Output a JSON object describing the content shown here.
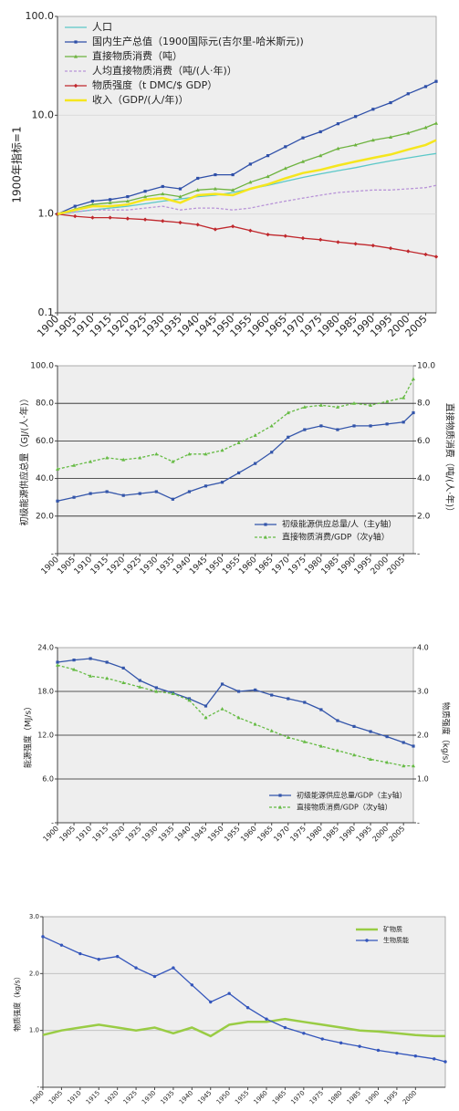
{
  "chart_data": [
    {
      "type": "line",
      "ylabel": "1900年指标=1",
      "ylog": true,
      "grid": true,
      "grid_color": "#d8d8d8",
      "legend": "upper left",
      "x": [
        1900,
        1905,
        1910,
        1915,
        1920,
        1925,
        1930,
        1935,
        1940,
        1945,
        1950,
        1955,
        1960,
        1965,
        1970,
        1975,
        1980,
        1985,
        1990,
        1995,
        2000,
        2005,
        2008
      ],
      "xlim": [
        1900,
        2008
      ],
      "xticks": [
        1900,
        1905,
        1910,
        1915,
        1920,
        1925,
        1930,
        1935,
        1940,
        1945,
        1950,
        1955,
        1960,
        1965,
        1970,
        1975,
        1980,
        1985,
        1990,
        1995,
        2000,
        2005
      ],
      "ylim": [
        0.1,
        100
      ],
      "yticks": [
        0.1,
        {
          "value": 1,
          "label": "1.0"
        },
        {
          "value": 10,
          "label": "10.0"
        },
        {
          "value": 100,
          "label": "100.0"
        }
      ],
      "series": [
        {
          "name": "人口",
          "color": "#5bc8c8",
          "values": [
            1,
            1.05,
            1.1,
            1.15,
            1.2,
            1.27,
            1.35,
            1.42,
            1.5,
            1.55,
            1.65,
            1.8,
            1.95,
            2.15,
            2.35,
            2.55,
            2.75,
            2.95,
            3.2,
            3.45,
            3.7,
            3.95,
            4.1
          ]
        },
        {
          "name": "国内生产总值（1900国际元(吉尔里-哈米斯元))",
          "color": "#2e4fa8",
          "marker": "square",
          "values": [
            1,
            1.2,
            1.35,
            1.4,
            1.5,
            1.7,
            1.9,
            1.8,
            2.3,
            2.5,
            2.5,
            3.2,
            3.9,
            4.8,
            5.9,
            6.8,
            8.2,
            9.7,
            11.5,
            13.4,
            16.5,
            19.5,
            22
          ]
        },
        {
          "name": "直接物质消费（吨）",
          "color": "#6db33f",
          "marker": "triangle",
          "values": [
            1,
            1.12,
            1.25,
            1.3,
            1.35,
            1.5,
            1.6,
            1.5,
            1.75,
            1.8,
            1.75,
            2.1,
            2.4,
            2.9,
            3.4,
            3.9,
            4.6,
            5,
            5.6,
            6,
            6.6,
            7.5,
            8.3
          ]
        },
        {
          "name": "人均直接物质消费（吨/(人·年)）",
          "color": "#b894d8",
          "dash": true,
          "values": [
            1,
            1.05,
            1.1,
            1.1,
            1.1,
            1.15,
            1.2,
            1.1,
            1.15,
            1.15,
            1.1,
            1.15,
            1.25,
            1.35,
            1.45,
            1.55,
            1.65,
            1.7,
            1.75,
            1.75,
            1.8,
            1.85,
            1.95
          ]
        },
        {
          "name": "物质强度（t DMC/$ GDP）",
          "color": "#c0282d",
          "marker": "diamond",
          "values": [
            1,
            0.95,
            0.92,
            0.92,
            0.9,
            0.88,
            0.85,
            0.82,
            0.78,
            0.7,
            0.75,
            0.68,
            0.62,
            0.6,
            0.57,
            0.55,
            0.52,
            0.5,
            0.48,
            0.45,
            0.42,
            0.39,
            0.37
          ]
        },
        {
          "name": "收入（GDP/(人/年)）",
          "color": "#f5e61e",
          "width": 2.5,
          "values": [
            1,
            1.1,
            1.2,
            1.2,
            1.25,
            1.4,
            1.45,
            1.3,
            1.55,
            1.6,
            1.55,
            1.8,
            2,
            2.3,
            2.6,
            2.8,
            3.1,
            3.4,
            3.7,
            4,
            4.5,
            5,
            5.6
          ]
        }
      ]
    },
    {
      "type": "line",
      "ylabel": "初级能源供应总量（GJ/(人·年)）",
      "y2label": "直接物质消费（吨/(人·年)）",
      "grid": true,
      "grid_color": "#222222",
      "legend": "lower right",
      "x": [
        1900,
        1905,
        1910,
        1915,
        1920,
        1925,
        1930,
        1935,
        1940,
        1945,
        1950,
        1955,
        1960,
        1965,
        1970,
        1975,
        1980,
        1985,
        1990,
        1995,
        2000,
        2005,
        2008
      ],
      "xlim": [
        1900,
        2008
      ],
      "xticks": [
        1900,
        1905,
        1910,
        1915,
        1920,
        1925,
        1930,
        1935,
        1940,
        1945,
        1950,
        1955,
        1960,
        1965,
        1970,
        1975,
        1980,
        1985,
        1990,
        1995,
        2000,
        2005
      ],
      "ylim": [
        0,
        100
      ],
      "yticks": [
        {
          "value": 0,
          "label": "-"
        },
        {
          "value": 20,
          "label": "20.0"
        },
        {
          "value": 40,
          "label": "40.0"
        },
        {
          "value": 60,
          "label": "60.0"
        },
        {
          "value": 80,
          "label": "80.0"
        },
        {
          "value": 100,
          "label": "100.0"
        }
      ],
      "y2lim": [
        0,
        10
      ],
      "y2ticks": [
        {
          "value": 0,
          "label": "-"
        },
        {
          "value": 2,
          "label": "2.0"
        },
        {
          "value": 4,
          "label": "4.0"
        },
        {
          "value": 6,
          "label": "6.0"
        },
        {
          "value": 8,
          "label": "8.0"
        },
        {
          "value": 10,
          "label": "10.0"
        }
      ],
      "series": [
        {
          "name": "初级能源供应总量/人（主y轴）",
          "color": "#3355aa",
          "marker": "square",
          "values": [
            28,
            30,
            32,
            33,
            31,
            32,
            33,
            29,
            33,
            36,
            38,
            43,
            48,
            54,
            62,
            66,
            68,
            66,
            68,
            68,
            69,
            70,
            75
          ]
        },
        {
          "name": "直接物质消费/GDP（次y轴）",
          "color": "#66bb44",
          "marker": "triangle",
          "dash": true,
          "axis": "y2",
          "values": [
            4.5,
            4.7,
            4.9,
            5.1,
            5,
            5.1,
            5.3,
            4.9,
            5.3,
            5.3,
            5.5,
            5.9,
            6.3,
            6.8,
            7.5,
            7.8,
            7.9,
            7.8,
            8,
            7.9,
            8.1,
            8.3,
            9.3
          ]
        }
      ]
    },
    {
      "type": "line",
      "ylabel": "能源强度（MJ/s）",
      "y2label": "物质强度（kg/s）",
      "grid": true,
      "grid_color": "#222222",
      "legend": "lower right",
      "x": [
        1900,
        1905,
        1910,
        1915,
        1920,
        1925,
        1930,
        1935,
        1940,
        1945,
        1950,
        1955,
        1960,
        1965,
        1970,
        1975,
        1980,
        1985,
        1990,
        1995,
        2000,
        2005,
        2008
      ],
      "xlim": [
        1900,
        2008
      ],
      "xticks": [
        1900,
        1905,
        1910,
        1915,
        1920,
        1925,
        1930,
        1935,
        1940,
        1945,
        1950,
        1955,
        1960,
        1965,
        1970,
        1975,
        1980,
        1985,
        1990,
        1995,
        2000,
        2005
      ],
      "ylim": [
        0,
        24
      ],
      "yticks": [
        {
          "value": 0,
          "label": "-"
        },
        {
          "value": 6,
          "label": "6.0"
        },
        {
          "value": 12,
          "label": "12.0"
        },
        {
          "value": 18,
          "label": "18.0"
        },
        {
          "value": 24,
          "label": "24.0"
        }
      ],
      "y2lim": [
        0,
        4
      ],
      "y2ticks": [
        {
          "value": 0,
          "label": "-"
        },
        {
          "value": 1,
          "label": "1.0"
        },
        {
          "value": 2,
          "label": "2.0"
        },
        {
          "value": 3,
          "label": "3.0"
        },
        {
          "value": 4,
          "label": "4.0"
        }
      ],
      "series": [
        {
          "name": "初级能源供应总量/GDP（主y轴）",
          "color": "#3355aa",
          "marker": "square",
          "values": [
            22,
            22.3,
            22.5,
            22,
            21.2,
            19.5,
            18.5,
            17.8,
            17,
            16,
            19,
            18,
            18.2,
            17.5,
            17,
            16.5,
            15.5,
            14,
            13.2,
            12.5,
            11.8,
            11,
            10.5
          ]
        },
        {
          "name": "直接物质消费/GDP（次y轴）",
          "color": "#66bb44",
          "marker": "triangle",
          "dash": true,
          "axis": "y2",
          "values": [
            3.6,
            3.5,
            3.35,
            3.3,
            3.2,
            3.1,
            3,
            2.95,
            2.8,
            2.4,
            2.6,
            2.4,
            2.25,
            2.1,
            1.95,
            1.85,
            1.75,
            1.65,
            1.55,
            1.45,
            1.38,
            1.3,
            1.3
          ]
        }
      ]
    },
    {
      "type": "line",
      "ylabel": "物质强度（kg/s）",
      "grid": true,
      "grid_color": "#bbbbbb",
      "legend": "upper right",
      "x": [
        1900,
        1905,
        1910,
        1915,
        1920,
        1925,
        1930,
        1935,
        1940,
        1945,
        1950,
        1955,
        1960,
        1965,
        1970,
        1975,
        1980,
        1985,
        1990,
        1995,
        2000,
        2005,
        2008
      ],
      "xlim": [
        1900,
        2008
      ],
      "xticks": [
        1900,
        1905,
        1910,
        1915,
        1920,
        1925,
        1930,
        1935,
        1940,
        1945,
        1950,
        1955,
        1960,
        1965,
        1970,
        1975,
        1980,
        1985,
        1990,
        1995,
        2000
      ],
      "ylim": [
        0,
        3
      ],
      "yticks": [
        {
          "value": 0,
          "label": "-"
        },
        {
          "value": 1,
          "label": "1.0"
        },
        {
          "value": 2,
          "label": "2.0"
        },
        {
          "value": 3,
          "label": "3.0"
        }
      ],
      "series": [
        {
          "name": "矿物质",
          "color": "#99cc44",
          "width": 2.5,
          "values": [
            0.92,
            1,
            1.05,
            1.1,
            1.05,
            1,
            1.05,
            0.95,
            1.05,
            0.9,
            1.1,
            1.15,
            1.15,
            1.2,
            1.15,
            1.1,
            1.05,
            1,
            0.98,
            0.95,
            0.92,
            0.9,
            0.9
          ]
        },
        {
          "name": "生物质能",
          "color": "#3355bb",
          "marker": "circle",
          "values": [
            2.65,
            2.5,
            2.35,
            2.25,
            2.3,
            2.1,
            1.95,
            2.1,
            1.8,
            1.5,
            1.65,
            1.4,
            1.2,
            1.05,
            0.95,
            0.85,
            0.78,
            0.72,
            0.65,
            0.6,
            0.55,
            0.5,
            0.45
          ]
        }
      ]
    }
  ]
}
